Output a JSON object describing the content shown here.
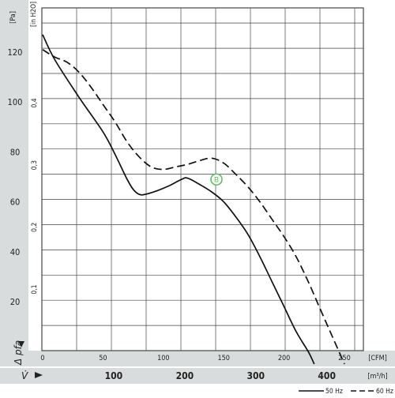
{
  "chart_data": {
    "type": "line",
    "title": "",
    "y_unit_left": "[Pa]",
    "y_unit_right": "[in H2O]",
    "x_unit_top": "[CFM]",
    "x_unit_bottom": "[m³/h]",
    "ylabel": "Δ pfa",
    "xlabel": "V̇",
    "ylim": [
      0,
      135
    ],
    "xlim_cfm": [
      0,
      260
    ],
    "xlim_m3h": [
      0,
      441.7
    ],
    "grid": true,
    "legend_position": "bottom-right",
    "pa_ticks": [
      20,
      40,
      60,
      80,
      100,
      120
    ],
    "inh2o_ticks": [
      0.1,
      0.2,
      0.3,
      0.4
    ],
    "inh2o_tick_labels": [
      "0,1",
      "0,2",
      "0,3",
      "0,4"
    ],
    "cfm_ticks": [
      0,
      50,
      100,
      150,
      200,
      250
    ],
    "m3h_ticks": [
      100,
      200,
      300,
      400
    ],
    "series": [
      {
        "name": "50 Hz",
        "dash": "solid",
        "x_cfm": [
          0,
          10,
          30,
          50,
          60,
          70,
          75,
          80,
          85,
          95,
          105,
          115,
          120,
          130,
          140,
          150,
          160,
          170,
          180,
          190,
          200,
          210,
          220,
          225
        ],
        "y_pa": [
          127,
          117,
          102,
          88,
          79,
          69,
          65,
          63,
          63,
          64.5,
          66.5,
          69,
          69.5,
          67,
          64,
          60,
          54,
          47,
          38,
          28,
          18,
          8,
          0,
          -5
        ]
      },
      {
        "name": "60 Hz",
        "dash": "dashed",
        "x_cfm": [
          0,
          10,
          20,
          30,
          40,
          50,
          60,
          70,
          80,
          90,
          100,
          110,
          120,
          130,
          140,
          150,
          160,
          170,
          180,
          190,
          200,
          210,
          220,
          230,
          240,
          250
        ],
        "y_pa": [
          121,
          118,
          116,
          112,
          106,
          99,
          92,
          84,
          78,
          74,
          73,
          74,
          75,
          76.5,
          77.5,
          75.5,
          71,
          66,
          60,
          53,
          46,
          38,
          28,
          17,
          6,
          -5
        ]
      }
    ],
    "annotation": {
      "label": "B",
      "x_cfm": 144,
      "y_pa": 69
    }
  }
}
